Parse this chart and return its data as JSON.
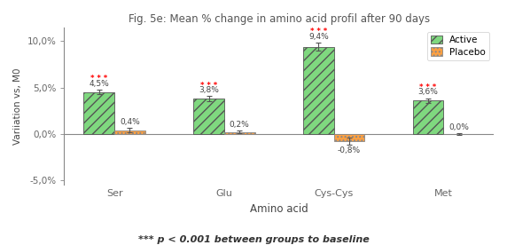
{
  "title": "Fig. 5e: Mean % change in amino acid profil after 90 days",
  "xlabel": "Amino acid",
  "ylabel": "Variiation vs, M0",
  "footnote": "*** p < 0.001 between groups to baseline",
  "categories": [
    "Ser",
    "Glu",
    "Cys-Cys",
    "Met"
  ],
  "active_values": [
    4.5,
    3.8,
    9.4,
    3.6
  ],
  "placebo_values": [
    0.4,
    0.2,
    -0.8,
    0.0
  ],
  "active_errors": [
    0.25,
    0.25,
    0.4,
    0.25
  ],
  "placebo_errors": [
    0.25,
    0.15,
    0.35,
    0.1
  ],
  "active_labels": [
    "4,5%",
    "3,8%",
    "9,4%",
    "3,6%"
  ],
  "placebo_labels": [
    "0,4%",
    "0,2%",
    "-0,8%",
    "0,0%"
  ],
  "active_color": "#7FD87F",
  "placebo_color": "#FFA040",
  "active_edge_color": "#555555",
  "placebo_edge_color": "#888888",
  "active_hatch": "///",
  "placebo_hatch": "....",
  "ylim": [
    -5.5,
    11.5
  ],
  "yticks": [
    -5.0,
    0.0,
    5.0,
    10.0
  ],
  "ytick_labels": [
    "-5,0%",
    "0,0%",
    "5,0%",
    "10,0%"
  ],
  "bar_width": 0.28,
  "significance_marker": "* * *",
  "sig_color": "red",
  "background_color": "#ffffff",
  "legend_labels": [
    "Active",
    "Placebo"
  ],
  "title_color": "#555555",
  "axis_color": "#888888"
}
